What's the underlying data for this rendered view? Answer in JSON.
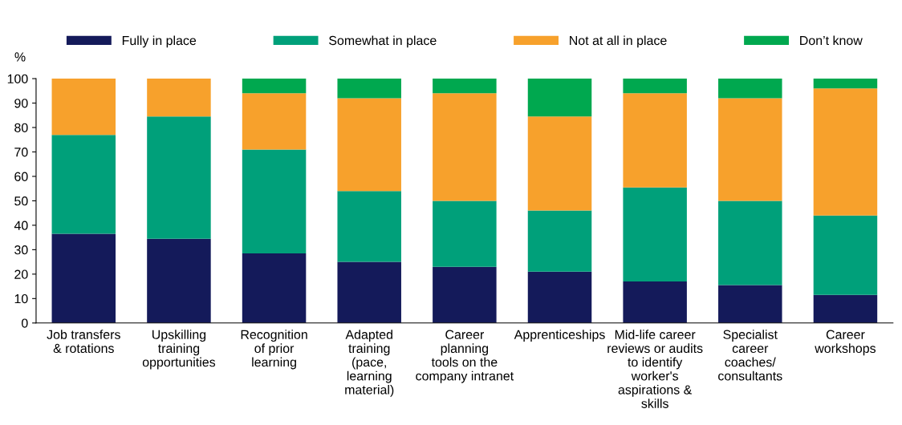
{
  "chart_data": {
    "type": "bar",
    "stacked": true,
    "ylabel": "%",
    "legend": "top",
    "categories": [
      "Job transfers\n& rotations",
      "Upskilling\ntraining\nopportunities",
      "Recognition\nof prior\nlearning",
      "Adapted\ntraining\n(pace,\nlearning\nmaterial)",
      "Career\nplanning\ntools on the\ncompany intranet",
      "Apprenticeships",
      "Mid-life career\nreviews or audits\nto identify\nworker's\naspirations &\nskills",
      "Specialist\ncareer\ncoaches/\nconsultants",
      "Career\nworkshops"
    ],
    "series": [
      {
        "name": "Fully in place",
        "color": "#141a5a",
        "values": [
          36.5,
          34.5,
          28.5,
          25,
          23,
          21,
          17,
          15.5,
          11.5
        ]
      },
      {
        "name": "Somewhat in place",
        "color": "#00a07a",
        "values": [
          40.5,
          50,
          42.5,
          29,
          27,
          25,
          38.5,
          34.5,
          32.5
        ]
      },
      {
        "name": "Not at all in place",
        "color": "#f7a12c",
        "values": [
          23,
          15.5,
          23,
          38,
          44,
          38.5,
          38.5,
          42,
          52
        ]
      },
      {
        "name": "Don’t know",
        "color": "#00a84f",
        "values": [
          0,
          0,
          6,
          8,
          6,
          15.5,
          6,
          8,
          4
        ]
      }
    ],
    "ylim": [
      0,
      100
    ],
    "yticks": [
      0,
      10,
      20,
      30,
      40,
      50,
      60,
      70,
      80,
      90,
      100
    ],
    "grid": false
  }
}
